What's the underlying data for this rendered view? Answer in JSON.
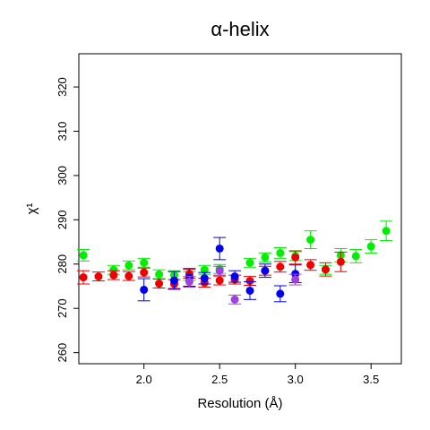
{
  "chart_data": {
    "type": "scatter",
    "title": "α-helix",
    "xlabel": "Resolution (Å)",
    "ylabel": "χ¹",
    "xlim": [
      1.57,
      3.7
    ],
    "ylim": [
      257.5,
      327.5
    ],
    "xticks": [
      2.0,
      2.5,
      3.0,
      3.5
    ],
    "xtick_labels": [
      "2.0",
      "2.5",
      "3.0",
      "3.5"
    ],
    "yticks": [
      260,
      270,
      280,
      290,
      300,
      310,
      320
    ],
    "ytick_labels": [
      "260",
      "270",
      "280",
      "290",
      "300",
      "310",
      "320"
    ],
    "grid": false,
    "series": [
      {
        "color": "#00ee00",
        "points": [
          {
            "x": 1.6,
            "y": 282.0,
            "err": 1.3
          },
          {
            "x": 1.8,
            "y": 278.7,
            "err": 1.0
          },
          {
            "x": 1.9,
            "y": 279.7,
            "err": 1.0
          },
          {
            "x": 2.0,
            "y": 280.3,
            "err": 1.0
          },
          {
            "x": 2.1,
            "y": 277.7,
            "err": 1.0
          },
          {
            "x": 2.2,
            "y": 277.5,
            "err": 1.0
          },
          {
            "x": 2.3,
            "y": 277.3,
            "err": 1.0
          },
          {
            "x": 2.4,
            "y": 278.7,
            "err": 1.0
          },
          {
            "x": 2.5,
            "y": 278.9,
            "err": 1.0
          },
          {
            "x": 2.7,
            "y": 280.3,
            "err": 1.0
          },
          {
            "x": 2.8,
            "y": 281.5,
            "err": 1.0
          },
          {
            "x": 2.9,
            "y": 282.5,
            "err": 1.2
          },
          {
            "x": 3.0,
            "y": 281.8,
            "err": 1.0
          },
          {
            "x": 3.1,
            "y": 285.5,
            "err": 2.0
          },
          {
            "x": 3.2,
            "y": 278.7,
            "err": 1.0
          },
          {
            "x": 3.3,
            "y": 282.0,
            "err": 1.5
          },
          {
            "x": 3.4,
            "y": 281.8,
            "err": 1.5
          },
          {
            "x": 3.5,
            "y": 284.0,
            "err": 1.5
          },
          {
            "x": 3.6,
            "y": 287.5,
            "err": 2.2
          }
        ]
      },
      {
        "color": "#ee0000",
        "points": [
          {
            "x": 1.6,
            "y": 277.0,
            "err": 1.5
          },
          {
            "x": 1.7,
            "y": 277.2,
            "err": 1.0
          },
          {
            "x": 1.8,
            "y": 277.5,
            "err": 1.0
          },
          {
            "x": 1.9,
            "y": 277.3,
            "err": 1.0
          },
          {
            "x": 2.0,
            "y": 278.1,
            "err": 1.0
          },
          {
            "x": 2.1,
            "y": 275.6,
            "err": 1.0
          },
          {
            "x": 2.2,
            "y": 275.5,
            "err": 1.0
          },
          {
            "x": 2.3,
            "y": 277.8,
            "err": 1.0
          },
          {
            "x": 2.4,
            "y": 275.8,
            "err": 1.0
          },
          {
            "x": 2.5,
            "y": 276.3,
            "err": 1.0
          },
          {
            "x": 2.6,
            "y": 276.5,
            "err": 1.0
          },
          {
            "x": 2.7,
            "y": 276.2,
            "err": 1.0
          },
          {
            "x": 2.8,
            "y": 278.5,
            "err": 1.0
          },
          {
            "x": 2.9,
            "y": 279.4,
            "err": 1.2
          },
          {
            "x": 3.0,
            "y": 281.5,
            "err": 1.5
          },
          {
            "x": 3.1,
            "y": 279.8,
            "err": 1.2
          },
          {
            "x": 3.2,
            "y": 278.8,
            "err": 1.5
          },
          {
            "x": 3.3,
            "y": 280.5,
            "err": 2.2
          }
        ]
      },
      {
        "color": "#0000ee",
        "points": [
          {
            "x": 2.0,
            "y": 274.2,
            "err": 2.5
          },
          {
            "x": 2.2,
            "y": 276.3,
            "err": 2.0
          },
          {
            "x": 2.3,
            "y": 277.0,
            "err": 2.0
          },
          {
            "x": 2.4,
            "y": 276.8,
            "err": 1.3
          },
          {
            "x": 2.5,
            "y": 283.5,
            "err": 2.5
          },
          {
            "x": 2.6,
            "y": 277.2,
            "err": 1.3
          },
          {
            "x": 2.7,
            "y": 274.0,
            "err": 2.0
          },
          {
            "x": 2.8,
            "y": 278.5,
            "err": 1.5
          },
          {
            "x": 2.9,
            "y": 273.3,
            "err": 1.8
          },
          {
            "x": 3.0,
            "y": 277.8,
            "err": 2.0
          }
        ]
      },
      {
        "color": "#a040e0",
        "points": [
          {
            "x": 2.3,
            "y": 276.0,
            "err": 1.2
          },
          {
            "x": 2.5,
            "y": 278.5,
            "err": 1.0
          },
          {
            "x": 2.6,
            "y": 272.0,
            "err": 1.0
          },
          {
            "x": 3.0,
            "y": 276.5,
            "err": 1.2
          }
        ]
      }
    ]
  }
}
